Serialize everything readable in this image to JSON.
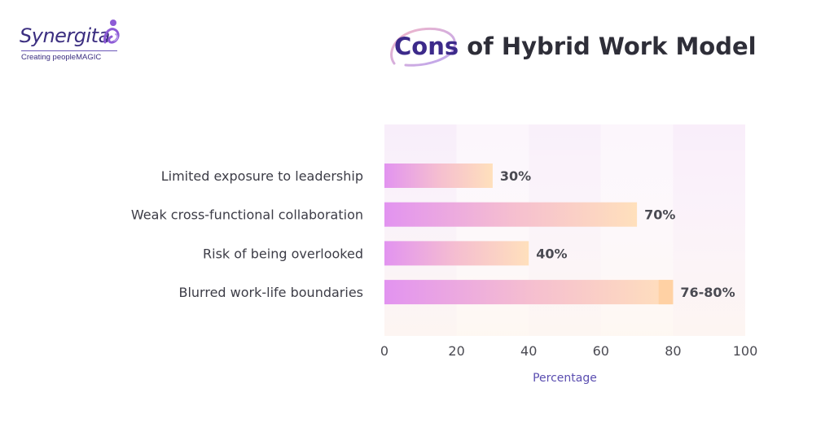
{
  "brand": {
    "name": "Synergita",
    "tagline": "Creating peopleMAGIC"
  },
  "title": {
    "highlight": "Cons",
    "rest": " of Hybrid Work Model"
  },
  "colors": {
    "brand_purple": "#3b2e80",
    "bar_start": "#e293f0",
    "bar_end": "#ffe0bc",
    "value_text": "#4a4a52",
    "axis_title": "#5a4db0"
  },
  "chart_data": {
    "type": "bar",
    "orientation": "horizontal",
    "categories": [
      "Limited exposure to leadership",
      "Weak cross-functional collaboration",
      "Risk of being overlooked",
      "Blurred work-life boundaries"
    ],
    "values": [
      30,
      70,
      40,
      80
    ],
    "range_low": [
      null,
      null,
      null,
      76
    ],
    "data_labels": [
      "30%",
      "70%",
      "40%",
      "76-80%"
    ],
    "xlabel": "Percentage",
    "ylabel": "",
    "xlim": [
      0,
      100
    ],
    "xticks": [
      0,
      20,
      40,
      60,
      80,
      100
    ],
    "grid": false
  }
}
